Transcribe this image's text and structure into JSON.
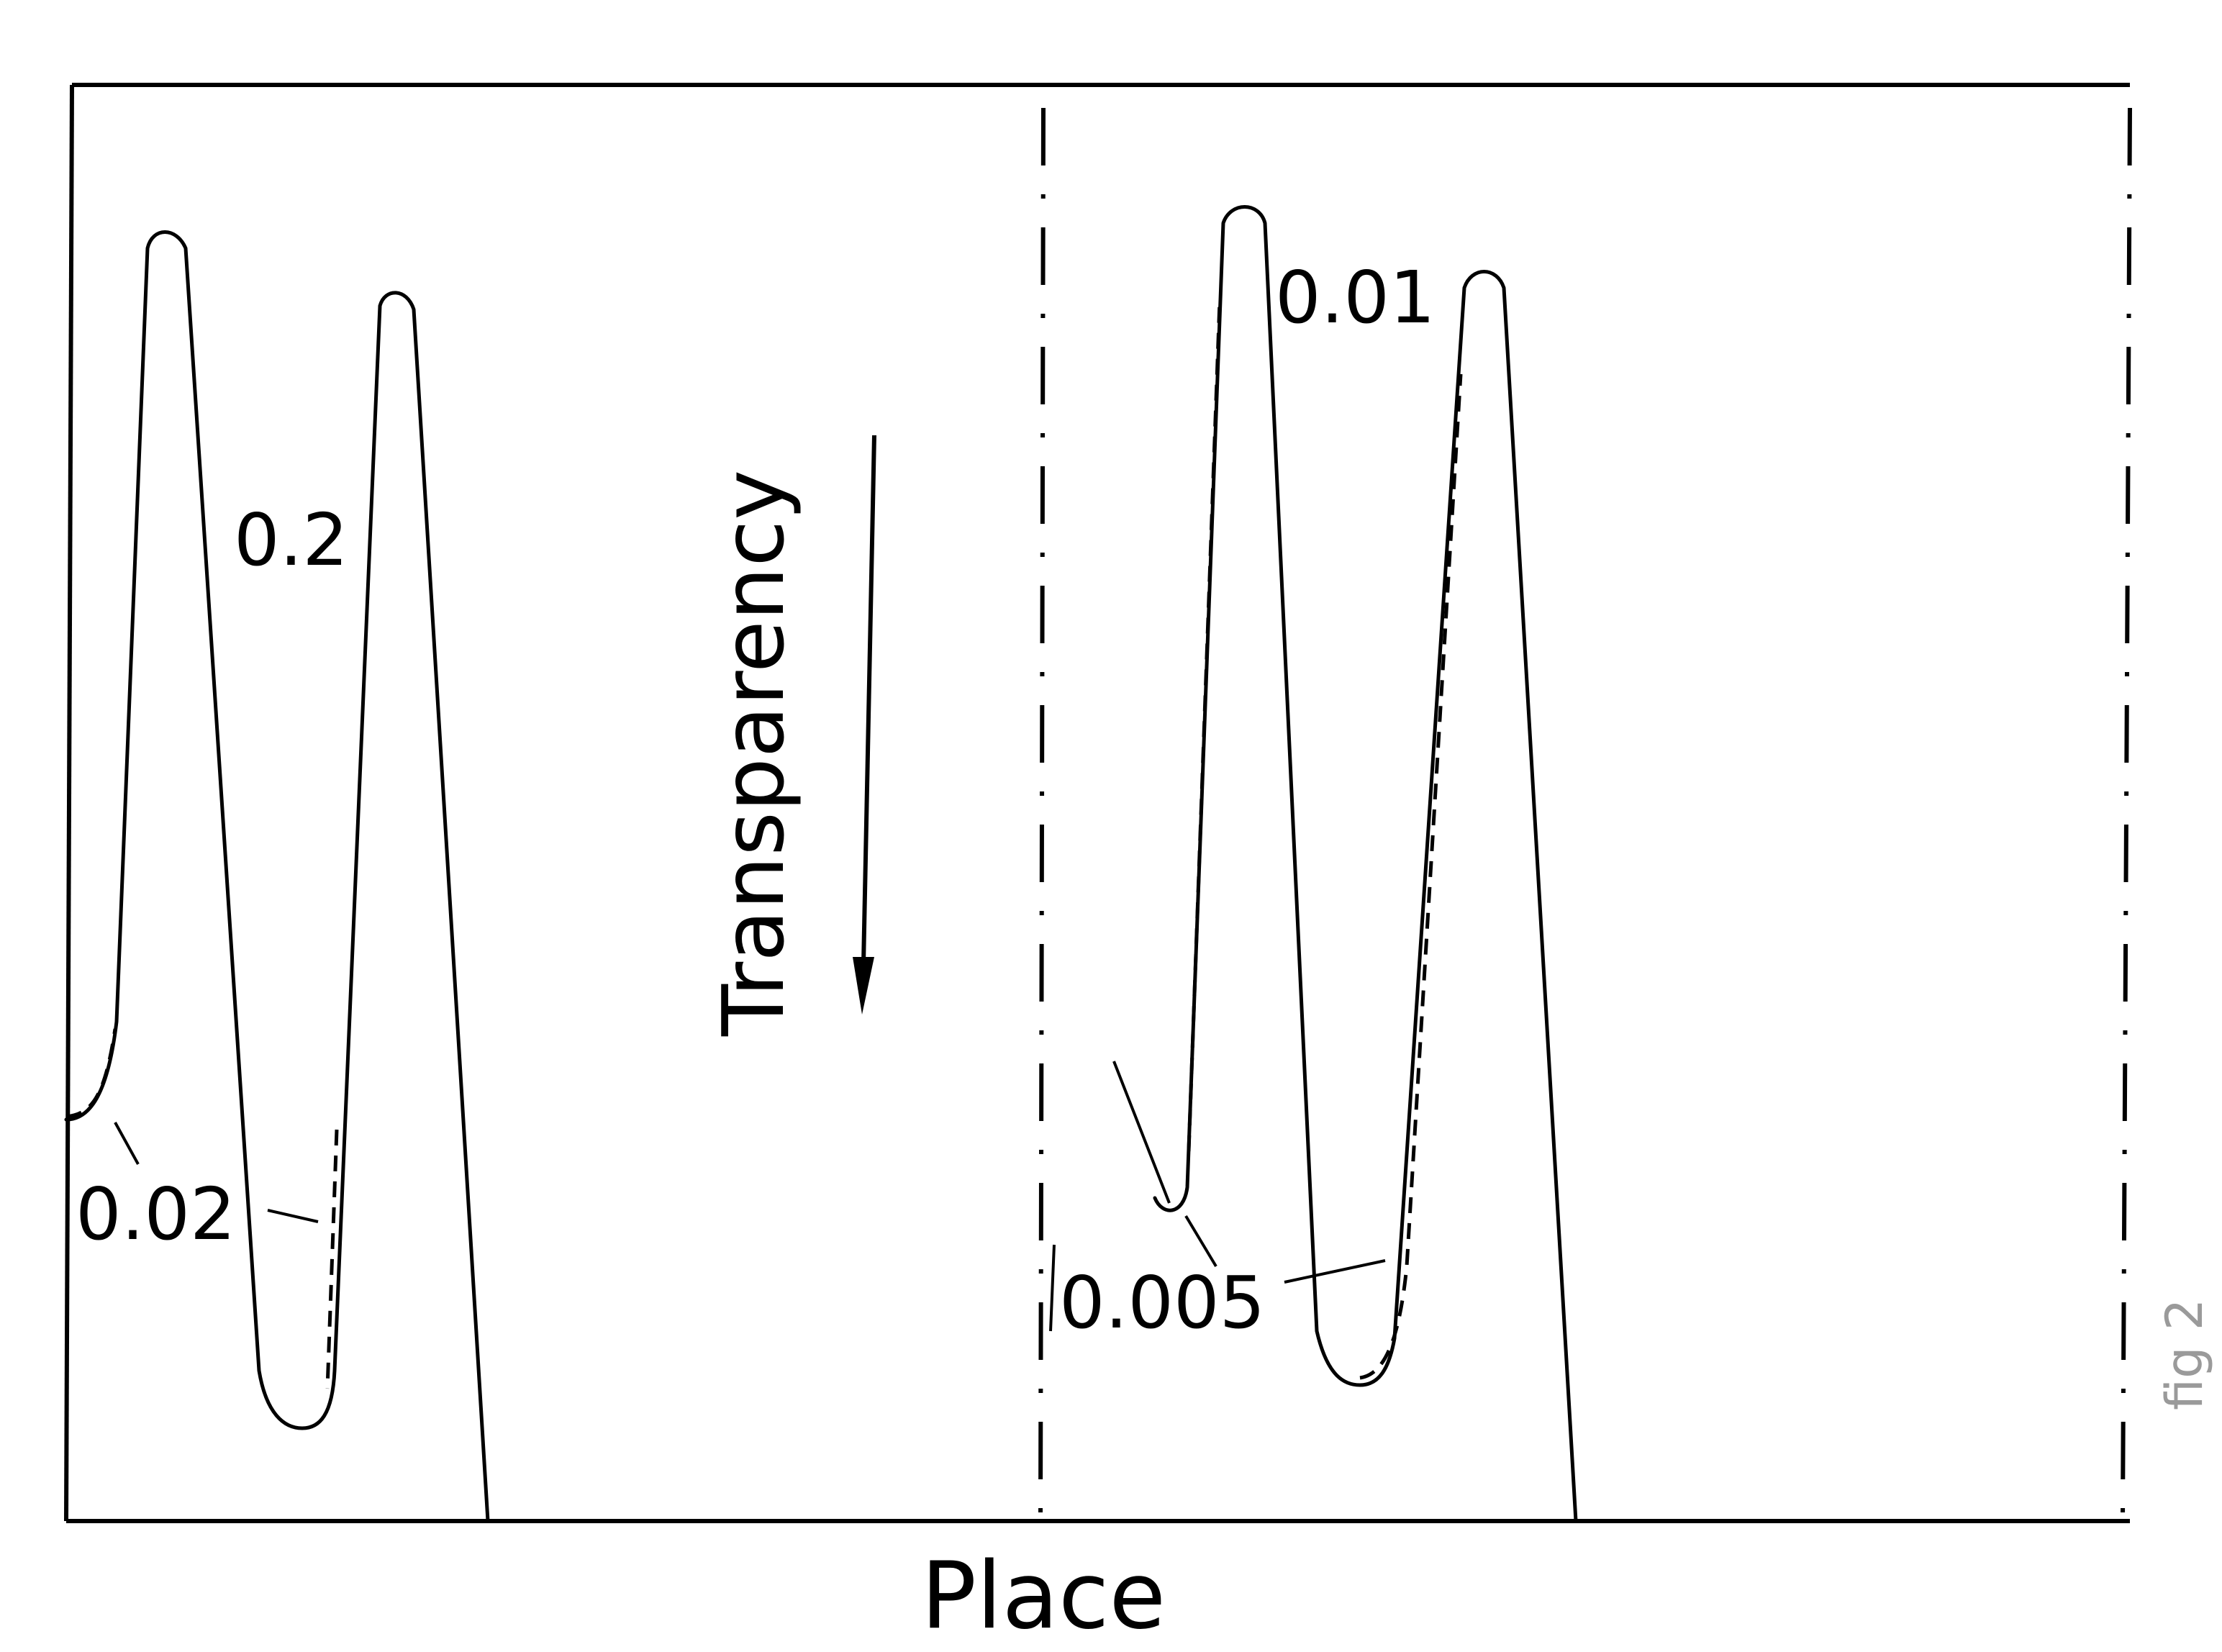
{
  "figure": {
    "xlabel": "Place",
    "ylabel": "Transparency",
    "side_annotation": "fig 2",
    "curve_labels": {
      "a": "0.2",
      "b": "0.02",
      "c": "0.01",
      "d": "0.005"
    }
  }
}
